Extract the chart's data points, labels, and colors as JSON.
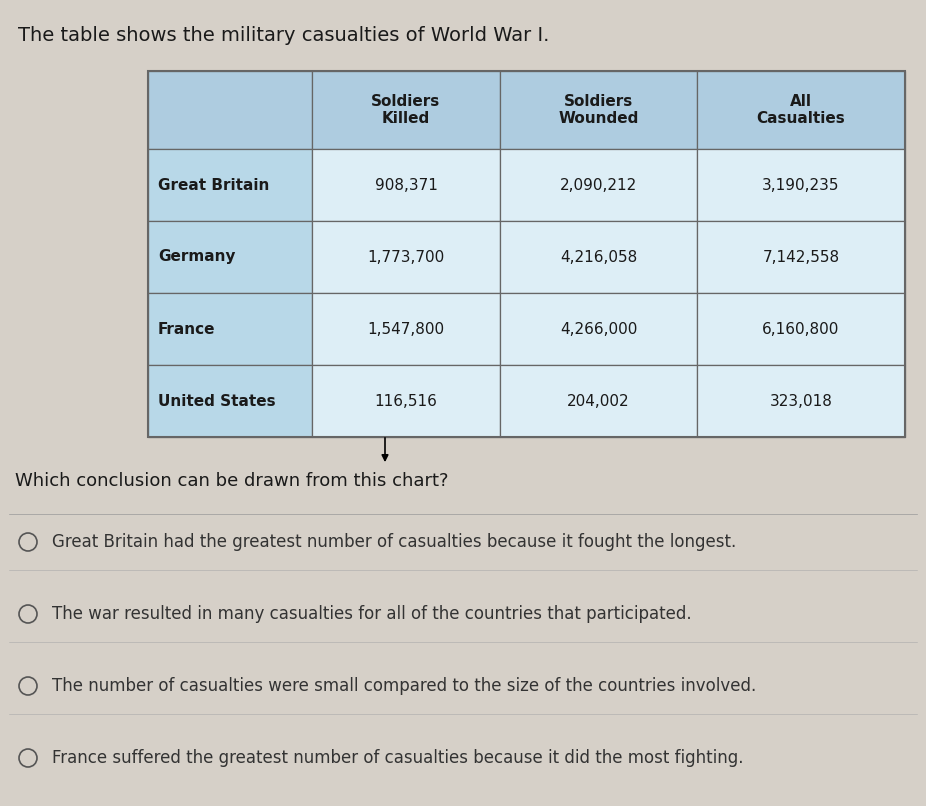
{
  "title": "The table shows the military casualties of World War I.",
  "col_headers": [
    "Soldiers\nKilled",
    "Soldiers\nWounded",
    "All\nCasualties"
  ],
  "rows": [
    {
      "country": "Great Britain",
      "killed": "908,371",
      "wounded": "2,090,212",
      "all": "3,190,235"
    },
    {
      "country": "Germany",
      "killed": "1,773,700",
      "wounded": "4,216,058",
      "all": "7,142,558"
    },
    {
      "country": "France",
      "killed": "1,547,800",
      "wounded": "4,266,000",
      "all": "6,160,800"
    },
    {
      "country": "United States",
      "killed": "116,516",
      "wounded": "204,002",
      "all": "323,018"
    }
  ],
  "question": "Which conclusion can be drawn from this chart?",
  "options": [
    "Great Britain had the greatest number of casualties because it fought the longest.",
    "The war resulted in many casualties for all of the countries that participated.",
    "The number of casualties were small compared to the size of the countries involved.",
    "France suffered the greatest number of casualties because it did the most fighting."
  ],
  "bg_color": "#d6d0c8",
  "header_bg": "#aecce0",
  "country_col_bg": "#b8d8e8",
  "data_cell_bg": "#ddeef6",
  "border_color": "#666666",
  "text_color": "#1a1a1a",
  "option_text_color": "#333333",
  "title_fontsize": 14,
  "header_fontsize": 11,
  "data_fontsize": 11,
  "country_fontsize": 11,
  "question_fontsize": 13,
  "option_fontsize": 12
}
